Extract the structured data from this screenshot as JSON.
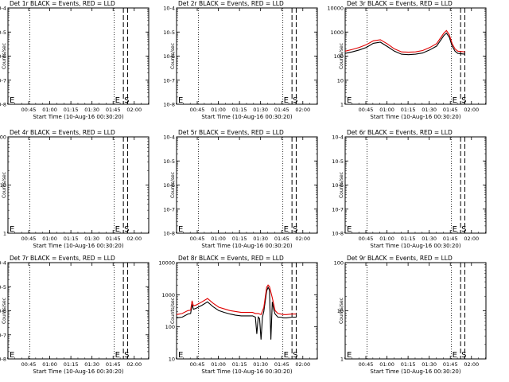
{
  "figure": {
    "time_ticks": [
      "00:45",
      "01:00",
      "01:15",
      "01:30",
      "01:45",
      "02:00"
    ],
    "xlabel": "Start Time (10-Aug-16 00:30:20)",
    "ylabel": "Counts/sec",
    "flag_E": "E",
    "flag_S": "S"
  },
  "chart_data": [
    {
      "type": "line",
      "title": "Det 1r BLACK = Events, RED = LLD",
      "scale": "log",
      "ylim": [
        1e-08,
        0.0001
      ],
      "tick_labels": [
        "10-8",
        "10-7",
        "10-6",
        "10-5",
        "10-4"
      ],
      "xlim_minutes": [
        0,
        100
      ],
      "dotted_lines_minutes": [
        15.5,
        75.5
      ],
      "dashed_lines_minutes": [
        82,
        85
      ],
      "series": []
    },
    {
      "type": "line",
      "title": "Det 2r BLACK = Events, RED = LLD",
      "scale": "log",
      "ylim": [
        1e-08,
        0.0001
      ],
      "tick_labels": [
        "10-8",
        "10-7",
        "10-6",
        "10-5",
        "10-4"
      ],
      "xlim_minutes": [
        0,
        100
      ],
      "dotted_lines_minutes": [
        15.5,
        75.5
      ],
      "dashed_lines_minutes": [
        82,
        85
      ],
      "series": []
    },
    {
      "type": "line",
      "title": "Det 3r BLACK = Events, RED = LLD",
      "scale": "log",
      "ylim": [
        1,
        10000
      ],
      "tick_labels": [
        "1",
        "10",
        "100",
        "1000",
        "10000"
      ],
      "xlim_minutes": [
        0,
        100
      ],
      "dotted_lines_minutes": [
        15.5,
        75.5
      ],
      "dashed_lines_minutes": [
        82,
        85
      ],
      "series": [
        {
          "color": "#000000",
          "x": [
            0,
            5,
            10,
            15,
            20,
            25,
            30,
            35,
            40,
            45,
            50,
            55,
            60,
            65,
            70,
            72,
            74,
            76,
            78,
            80,
            85
          ],
          "y": [
            130,
            150,
            180,
            230,
            340,
            380,
            250,
            160,
            120,
            115,
            120,
            135,
            180,
            260,
            700,
            900,
            600,
            260,
            160,
            130,
            120
          ]
        },
        {
          "color": "#e00000",
          "x": [
            0,
            5,
            10,
            15,
            20,
            25,
            30,
            35,
            40,
            45,
            50,
            55,
            60,
            65,
            70,
            72,
            74,
            76,
            78,
            80,
            85
          ],
          "y": [
            160,
            190,
            230,
            300,
            430,
            480,
            320,
            200,
            150,
            145,
            150,
            170,
            225,
            330,
            880,
            1150,
            760,
            330,
            200,
            160,
            150
          ]
        }
      ]
    },
    {
      "type": "line",
      "title": "Det 4r BLACK = Events, RED = LLD",
      "scale": "log",
      "ylim": [
        1,
        100
      ],
      "tick_labels": [
        "1",
        "10",
        "100"
      ],
      "xlim_minutes": [
        0,
        100
      ],
      "dotted_lines_minutes": [
        15.5,
        75.5
      ],
      "dashed_lines_minutes": [
        82,
        85
      ],
      "series": []
    },
    {
      "type": "line",
      "title": "Det 5r BLACK = Events, RED = LLD",
      "scale": "log",
      "ylim": [
        1e-08,
        0.0001
      ],
      "tick_labels": [
        "10-8",
        "10-7",
        "10-6",
        "10-5",
        "10-4"
      ],
      "xlim_minutes": [
        0,
        100
      ],
      "dotted_lines_minutes": [
        15.5,
        75.5
      ],
      "dashed_lines_minutes": [
        82,
        85
      ],
      "series": []
    },
    {
      "type": "line",
      "title": "Det 6r BLACK = Events, RED = LLD",
      "scale": "log",
      "ylim": [
        1e-08,
        0.0001
      ],
      "tick_labels": [
        "10-8",
        "10-7",
        "10-6",
        "10-5",
        "10-4"
      ],
      "xlim_minutes": [
        0,
        100
      ],
      "dotted_lines_minutes": [
        15.5,
        75.5
      ],
      "dashed_lines_minutes": [
        82,
        85
      ],
      "series": []
    },
    {
      "type": "line",
      "title": "Det 7r BLACK = Events, RED = LLD",
      "scale": "log",
      "ylim": [
        1e-08,
        0.0001
      ],
      "tick_labels": [
        "10-8",
        "10-7",
        "10-6",
        "10-5",
        "10-4"
      ],
      "xlim_minutes": [
        0,
        100
      ],
      "dotted_lines_minutes": [
        15.5,
        75.5
      ],
      "dashed_lines_minutes": [
        82,
        85
      ],
      "series": []
    },
    {
      "type": "line",
      "title": "Det 8r BLACK = Events, RED = LLD",
      "scale": "log",
      "ylim": [
        10,
        10000
      ],
      "tick_labels": [
        "10",
        "100",
        "1000",
        "10000"
      ],
      "xlim_minutes": [
        0,
        100
      ],
      "dotted_lines_minutes": [
        15.5,
        75.5
      ],
      "dashed_lines_minutes": [
        82,
        85
      ],
      "series": [
        {
          "color": "#000000",
          "x": [
            0,
            4,
            8,
            10,
            11,
            12,
            14,
            18,
            22,
            26,
            30,
            34,
            38,
            42,
            46,
            50,
            54,
            56,
            57,
            58,
            59,
            60,
            61,
            62,
            64,
            65,
            66,
            67,
            68,
            69,
            70,
            72,
            74,
            76,
            78,
            82,
            85
          ],
          "y": [
            190,
            200,
            250,
            260,
            500,
            350,
            380,
            470,
            600,
            420,
            320,
            280,
            250,
            230,
            220,
            220,
            220,
            200,
            60,
            200,
            180,
            40,
            200,
            300,
            1300,
            1700,
            1400,
            40,
            600,
            350,
            250,
            200,
            200,
            190,
            190,
            200,
            200
          ]
        },
        {
          "color": "#e00000",
          "x": [
            0,
            4,
            8,
            10,
            11,
            12,
            14,
            18,
            22,
            26,
            30,
            34,
            38,
            42,
            46,
            50,
            54,
            56,
            58,
            60,
            62,
            64,
            65,
            66,
            68,
            70,
            72,
            74,
            76,
            78,
            82,
            85
          ],
          "y": [
            240,
            260,
            320,
            330,
            650,
            450,
            480,
            600,
            760,
            540,
            410,
            360,
            320,
            300,
            280,
            280,
            280,
            260,
            260,
            240,
            400,
            1700,
            2000,
            1800,
            800,
            320,
            260,
            250,
            240,
            240,
            250,
            250
          ]
        }
      ]
    },
    {
      "type": "line",
      "title": "Det 9r BLACK = Events, RED = LLD",
      "scale": "log",
      "ylim": [
        1,
        100
      ],
      "tick_labels": [
        "1",
        "10",
        "100"
      ],
      "xlim_minutes": [
        0,
        100
      ],
      "dotted_lines_minutes": [
        15.5,
        75.5
      ],
      "dashed_lines_minutes": [
        82,
        85
      ],
      "series": []
    }
  ]
}
